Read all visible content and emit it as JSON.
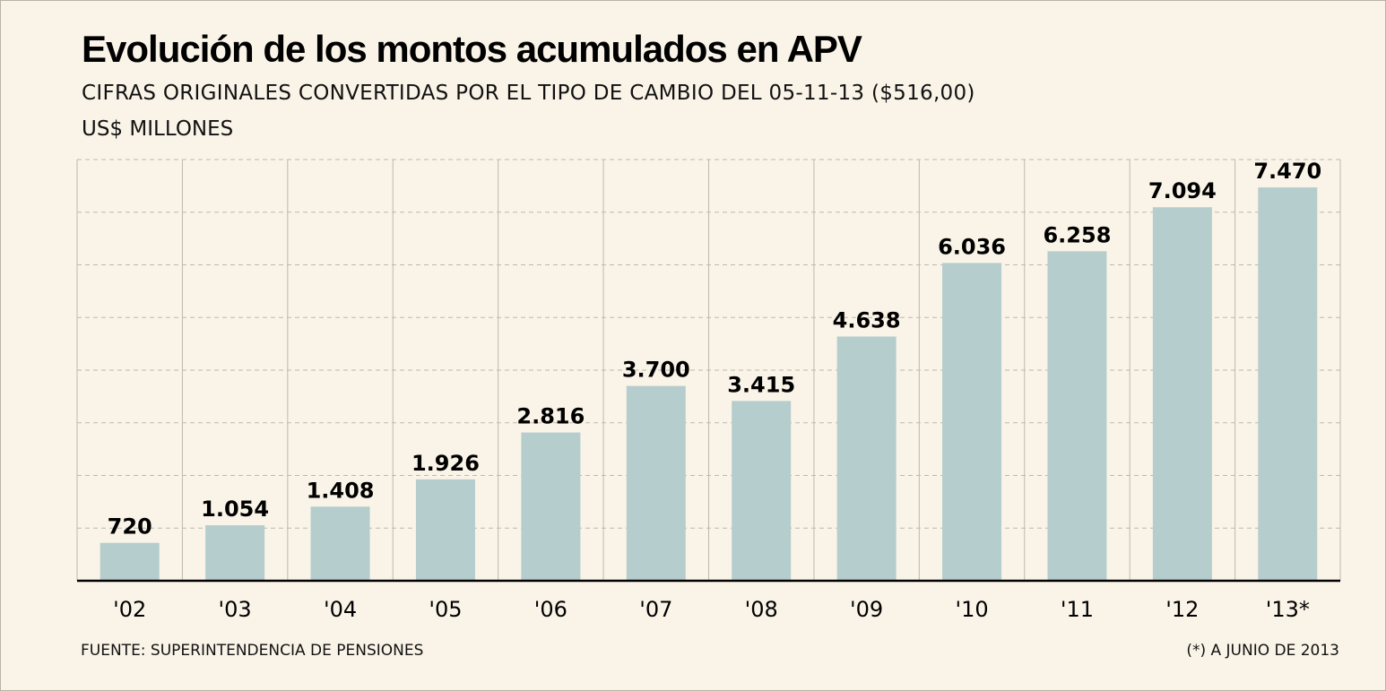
{
  "title": "Evolución de los montos acumulados en APV",
  "subtitle": "CIFRAS ORIGINALES CONVERTIDAS POR EL TIPO DE CAMBIO DEL 05-11-13 ($516,00)",
  "units": "US$ MILLONES",
  "footer": {
    "source": "FUENTE: SUPERINTENDENCIA DE PENSIONES",
    "note": "(*) A JUNIO DE 2013"
  },
  "colors": {
    "background": "#faf4e8",
    "bar": "#b5cdcd",
    "grid": "#bdb8ad",
    "axis": "#000000"
  },
  "chart_data": {
    "type": "bar",
    "categories": [
      "'02",
      "'03",
      "'04",
      "'05",
      "'06",
      "'07",
      "'08",
      "'09",
      "'10",
      "'11",
      "'12",
      "'13*"
    ],
    "values": [
      720,
      1054,
      1408,
      1926,
      2816,
      3700,
      3415,
      4638,
      6036,
      6258,
      7094,
      7470
    ],
    "value_labels": [
      "720",
      "1.054",
      "1.408",
      "1.926",
      "2.816",
      "3.700",
      "3.415",
      "4.638",
      "6.036",
      "6.258",
      "7.094",
      "7.470"
    ],
    "ylim": [
      0,
      8000
    ],
    "grid": true
  }
}
